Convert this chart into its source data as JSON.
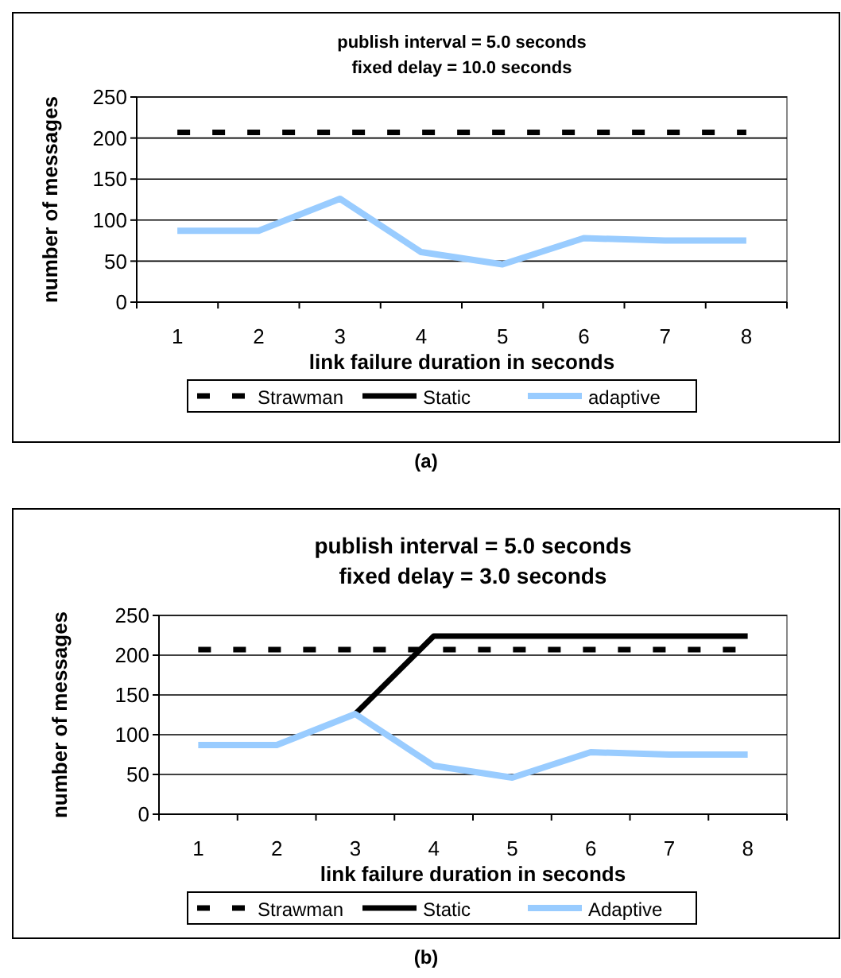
{
  "chart_data": [
    {
      "type": "line",
      "title": "publish interval = 5.0 seconds",
      "subtitle": "fixed delay = 10.0 seconds",
      "xlabel": "link failure duration in seconds",
      "ylabel": "number of messages",
      "annotations": [
        "(a)"
      ],
      "categories": [
        "1",
        "2",
        "3",
        "4",
        "5",
        "6",
        "7",
        "8"
      ],
      "ylim": [
        0,
        250
      ],
      "yticks": [
        0,
        50,
        100,
        150,
        200,
        250
      ],
      "grid": "y",
      "legend": "bottom",
      "series": [
        {
          "name": "Strawman",
          "color": "#000000",
          "line_style": "dashed",
          "values": [
            207,
            207,
            207,
            207,
            207,
            207,
            207,
            207
          ]
        },
        {
          "name": "Static",
          "color": "#000000",
          "line_style": "solid",
          "values": [
            null,
            null,
            null,
            null,
            null,
            null,
            null,
            null
          ]
        },
        {
          "name": "adaptive",
          "color": "#99ccff",
          "line_style": "solid",
          "values": [
            87,
            87,
            126,
            61,
            46,
            78,
            75,
            75
          ]
        }
      ]
    },
    {
      "type": "line",
      "title": "publish interval = 5.0 seconds",
      "subtitle": "fixed delay = 3.0 seconds",
      "xlabel": "link failure duration in seconds",
      "ylabel": "number of messages",
      "annotations": [
        "(b)"
      ],
      "categories": [
        "1",
        "2",
        "3",
        "4",
        "5",
        "6",
        "7",
        "8"
      ],
      "ylim": [
        0,
        250
      ],
      "yticks": [
        0,
        50,
        100,
        150,
        200,
        250
      ],
      "grid": "y",
      "legend": "bottom",
      "series": [
        {
          "name": "Strawman",
          "color": "#000000",
          "line_style": "dashed",
          "values": [
            207,
            207,
            207,
            207,
            207,
            207,
            207,
            207
          ]
        },
        {
          "name": "Static",
          "color": "#000000",
          "line_style": "solid",
          "values": [
            null,
            null,
            126,
            224,
            224,
            224,
            224,
            224
          ]
        },
        {
          "name": "Adaptive",
          "color": "#99ccff",
          "line_style": "solid",
          "values": [
            87,
            87,
            126,
            61,
            46,
            78,
            75,
            75
          ]
        }
      ]
    }
  ]
}
